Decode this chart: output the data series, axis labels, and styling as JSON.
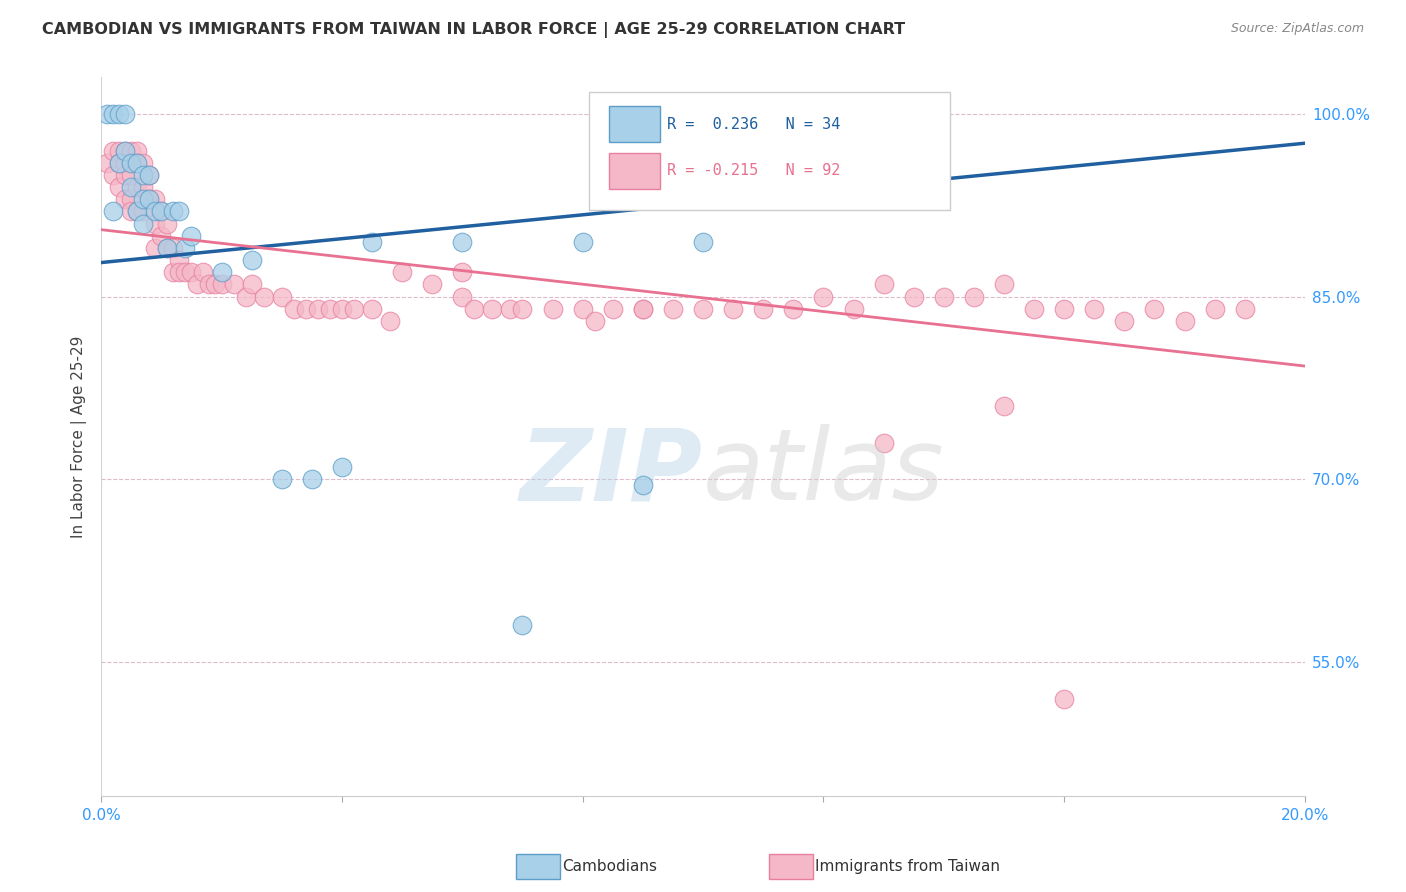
{
  "title": "CAMBODIAN VS IMMIGRANTS FROM TAIWAN IN LABOR FORCE | AGE 25-29 CORRELATION CHART",
  "source": "Source: ZipAtlas.com",
  "ylabel": "In Labor Force | Age 25-29",
  "xlim": [
    0.0,
    0.2
  ],
  "ylim": [
    0.44,
    1.03
  ],
  "xticks": [
    0.0,
    0.04,
    0.08,
    0.12,
    0.16,
    0.2
  ],
  "xticklabels": [
    "0.0%",
    "",
    "",
    "",
    "",
    "20.0%"
  ],
  "yticks": [
    0.55,
    0.7,
    0.85,
    1.0
  ],
  "yticklabels": [
    "55.0%",
    "70.0%",
    "85.0%",
    "100.0%"
  ],
  "cambodian_color": "#a8d0e8",
  "taiwan_color": "#f4b8c8",
  "cambodian_edge": "#5b9ec9",
  "taiwan_edge": "#e87fa0",
  "blue_line_color": "#2060a0",
  "pink_line_color": "#e87090",
  "R_cambodian": 0.236,
  "N_cambodian": 34,
  "R_taiwan": -0.215,
  "N_taiwan": 92,
  "cam_line_x0": 0.0,
  "cam_line_y0": 0.878,
  "cam_line_x1": 0.2,
  "cam_line_y1": 0.976,
  "tai_line_x0": 0.0,
  "tai_line_y0": 0.905,
  "tai_line_x1": 0.2,
  "tai_line_y1": 0.793,
  "cambodian_x": [
    0.001,
    0.002,
    0.002,
    0.003,
    0.003,
    0.004,
    0.004,
    0.005,
    0.005,
    0.006,
    0.006,
    0.007,
    0.007,
    0.007,
    0.008,
    0.008,
    0.009,
    0.01,
    0.011,
    0.012,
    0.013,
    0.014,
    0.015,
    0.02,
    0.025,
    0.03,
    0.035,
    0.04,
    0.045,
    0.06,
    0.07,
    0.08,
    0.09,
    0.1
  ],
  "cambodian_y": [
    1.0,
    1.0,
    0.92,
    1.0,
    0.96,
    1.0,
    0.97,
    0.96,
    0.94,
    0.96,
    0.92,
    0.95,
    0.93,
    0.91,
    0.95,
    0.93,
    0.92,
    0.92,
    0.89,
    0.92,
    0.92,
    0.89,
    0.9,
    0.87,
    0.88,
    0.7,
    0.7,
    0.71,
    0.895,
    0.895,
    0.58,
    0.895,
    0.695,
    0.895
  ],
  "taiwan_x": [
    0.001,
    0.002,
    0.002,
    0.003,
    0.003,
    0.003,
    0.004,
    0.004,
    0.004,
    0.004,
    0.005,
    0.005,
    0.005,
    0.005,
    0.005,
    0.006,
    0.006,
    0.006,
    0.006,
    0.007,
    0.007,
    0.007,
    0.008,
    0.008,
    0.009,
    0.009,
    0.009,
    0.01,
    0.01,
    0.011,
    0.011,
    0.012,
    0.012,
    0.013,
    0.013,
    0.014,
    0.015,
    0.016,
    0.017,
    0.018,
    0.019,
    0.02,
    0.022,
    0.024,
    0.025,
    0.027,
    0.03,
    0.032,
    0.034,
    0.036,
    0.038,
    0.04,
    0.042,
    0.045,
    0.048,
    0.05,
    0.055,
    0.06,
    0.062,
    0.065,
    0.068,
    0.07,
    0.075,
    0.08,
    0.082,
    0.085,
    0.09,
    0.095,
    0.1,
    0.105,
    0.11,
    0.115,
    0.12,
    0.125,
    0.13,
    0.135,
    0.14,
    0.145,
    0.15,
    0.155,
    0.16,
    0.165,
    0.17,
    0.175,
    0.18,
    0.185,
    0.19,
    0.13,
    0.06,
    0.09,
    0.15,
    0.16
  ],
  "taiwan_y": [
    0.96,
    0.97,
    0.95,
    0.97,
    0.96,
    0.94,
    0.97,
    0.96,
    0.95,
    0.93,
    0.97,
    0.96,
    0.95,
    0.93,
    0.92,
    0.97,
    0.96,
    0.94,
    0.92,
    0.96,
    0.94,
    0.92,
    0.95,
    0.93,
    0.93,
    0.91,
    0.89,
    0.92,
    0.9,
    0.91,
    0.89,
    0.89,
    0.87,
    0.88,
    0.87,
    0.87,
    0.87,
    0.86,
    0.87,
    0.86,
    0.86,
    0.86,
    0.86,
    0.85,
    0.86,
    0.85,
    0.85,
    0.84,
    0.84,
    0.84,
    0.84,
    0.84,
    0.84,
    0.84,
    0.83,
    0.87,
    0.86,
    0.85,
    0.84,
    0.84,
    0.84,
    0.84,
    0.84,
    0.84,
    0.83,
    0.84,
    0.84,
    0.84,
    0.84,
    0.84,
    0.84,
    0.84,
    0.85,
    0.84,
    0.86,
    0.85,
    0.85,
    0.85,
    0.86,
    0.84,
    0.84,
    0.84,
    0.83,
    0.84,
    0.83,
    0.84,
    0.84,
    0.73,
    0.87,
    0.84,
    0.76,
    0.52
  ]
}
